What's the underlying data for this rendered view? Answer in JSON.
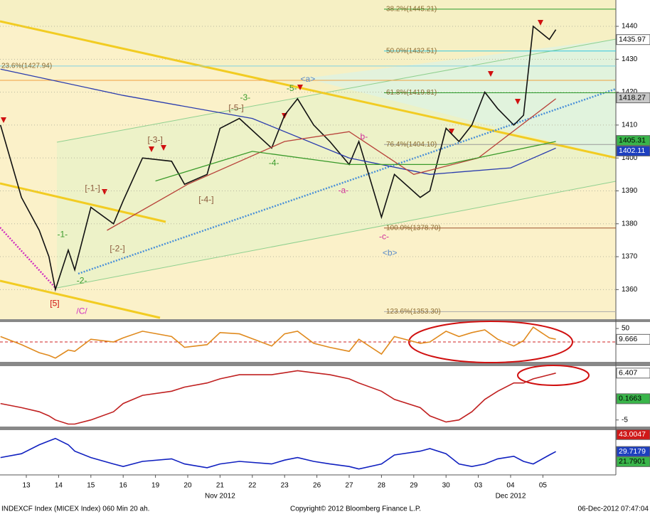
{
  "chart_data": [
    {
      "type": "line",
      "xlim": [
        -0.815,
        18.26
      ],
      "ylim": [
        1351,
        1448
      ],
      "yticks": [
        1360,
        1370,
        1380,
        1390,
        1400,
        1410,
        1420,
        1430,
        1440
      ],
      "grid": true,
      "x": [
        -0.8,
        -0.15,
        0.4,
        0.7,
        0.9,
        1.3,
        1.5,
        2.0,
        2.7,
        3.0,
        3.6,
        4.5,
        4.9,
        5.6,
        6.0,
        6.6,
        7.6,
        8.0,
        8.4,
        8.9,
        9.4,
        10.0,
        10.3,
        11.0,
        11.4,
        12.2,
        12.5,
        13.0,
        13.4,
        13.8,
        14.2,
        14.6,
        15.1,
        15.4,
        15.7,
        16.2,
        16.4
      ],
      "series": [
        {
          "color": "#111111",
          "values": [
            1410,
            1388,
            1378,
            1370,
            1360,
            1372,
            1366,
            1385,
            1380,
            1387,
            1400,
            1399,
            1392,
            1395,
            1409,
            1412,
            1403,
            1413,
            1418,
            1410,
            1405,
            1398,
            1405,
            1382,
            1395,
            1388,
            1390,
            1409,
            1405,
            1410,
            1420,
            1415,
            1410,
            1413,
            1440,
            1436,
            1439
          ]
        },
        {
          "color": "#2a3cae",
          "x": [
            -0.8,
            3,
            7,
            10,
            12.5,
            15,
            16.4
          ],
          "values": [
            1427,
            1419,
            1412,
            1400,
            1395,
            1397,
            1403
          ]
        },
        {
          "color": "#b8423a",
          "x": [
            2.5,
            5,
            8,
            10,
            12,
            14,
            16.4
          ],
          "values": [
            1378,
            1392,
            1405,
            1408,
            1395,
            1400,
            1418
          ]
        },
        {
          "color": "#3a9a2a",
          "x": [
            4,
            7,
            10,
            13,
            16.4
          ],
          "values": [
            1393,
            1402,
            1398,
            1398,
            1405
          ]
        }
      ],
      "levels": [
        {
          "label": "23.6%(1427.94)",
          "value": 1427.94,
          "color": "#7fd0e0"
        },
        {
          "label": "38.2%(1445.21)",
          "value": 1445.21,
          "color": "#2a9a2a"
        },
        {
          "label": "50.0%(1432.51)",
          "value": 1432.51,
          "color": "#33c7e0"
        },
        {
          "label": "61.8%(1419.81)",
          "value": 1419.81,
          "color": "#2a9a2a"
        },
        {
          "label": "76.4%(1404.10)",
          "value": 1404.1,
          "color": "#999999"
        },
        {
          "label": "100.0%(1378.70)",
          "value": 1378.7,
          "color": "#a0522d"
        },
        {
          "label": "123.6%(1353.30)",
          "value": 1353.3,
          "color": "#aaaaaa"
        }
      ],
      "price_tags": [
        {
          "value": 1435.97,
          "color": "#ffffff",
          "text_color": "#000000"
        },
        {
          "value": 1418.27,
          "color": "#c8c8c8",
          "text_color": "#000000"
        },
        {
          "value": 1405.31,
          "color": "#39b54a",
          "text_color": "#000000"
        },
        {
          "value": 1402.11,
          "color": "#1d3fbf",
          "text_color": "#ffffff"
        }
      ],
      "annotations": [
        {
          "text": "-1-",
          "x": 1.12,
          "y": 1376.6,
          "color": "#3a9a2a"
        },
        {
          "text": "-2-",
          "x": 1.72,
          "y": 1362.6,
          "color": "#3a9a2a"
        },
        {
          "text": "[-1-]",
          "x": 2.05,
          "y": 1390.7,
          "color": "#8b5a3c"
        },
        {
          "text": "[-2-]",
          "x": 2.82,
          "y": 1372.3,
          "color": "#8b5a3c"
        },
        {
          "text": "[-3-]",
          "x": 3.99,
          "y": 1405.4,
          "color": "#8b5a3c"
        },
        {
          "text": "[-4-]",
          "x": 5.57,
          "y": 1387.2,
          "color": "#8b5a3c"
        },
        {
          "text": "[-5-]",
          "x": 6.5,
          "y": 1415.1,
          "color": "#8b5a3c"
        },
        {
          "text": "-3-",
          "x": 6.78,
          "y": 1418.2,
          "color": "#3a9a2a"
        },
        {
          "text": "-4-",
          "x": 7.67,
          "y": 1398.3,
          "color": "#3a9a2a"
        },
        {
          "text": "-5-",
          "x": 8.22,
          "y": 1421,
          "color": "#3a9a2a"
        },
        {
          "text": "<a>",
          "x": 8.72,
          "y": 1423.8,
          "color": "#5a8ac8"
        },
        {
          "text": "-a-",
          "x": 9.82,
          "y": 1390,
          "color": "#d0309a"
        },
        {
          "text": "b-",
          "x": 10.46,
          "y": 1406.3,
          "color": "#d0309a"
        },
        {
          "text": "-c-",
          "x": 11.08,
          "y": 1376,
          "color": "#d0309a"
        },
        {
          "text": "<b>",
          "x": 11.26,
          "y": 1371,
          "color": "#5a8ac8"
        },
        {
          "text": "[5]",
          "x": 0.88,
          "y": 1355.7,
          "color": "#d01010"
        },
        {
          "text": "/C/",
          "x": 1.72,
          "y": 1353.3,
          "color": "#d030c0"
        }
      ]
    },
    {
      "type": "line",
      "xlim": [
        -0.815,
        18.26
      ],
      "ylim": [
        -74,
        74
      ],
      "yticks": [
        50
      ],
      "grid": false,
      "x": [
        -0.8,
        -0.15,
        0.4,
        0.7,
        0.9,
        1.3,
        1.5,
        2.0,
        2.7,
        3.0,
        3.6,
        4.5,
        4.9,
        5.6,
        6.0,
        6.6,
        7.6,
        8.0,
        8.4,
        8.9,
        9.4,
        10.0,
        10.3,
        11.0,
        11.4,
        12.2,
        12.5,
        13.0,
        13.4,
        13.8,
        14.2,
        14.6,
        15.1,
        15.4,
        15.7,
        16.2,
        16.4
      ],
      "series": [
        {
          "color": "#e08a1e",
          "values": [
            20,
            -10,
            -40,
            -50,
            -60,
            -30,
            -35,
            10,
            0,
            15,
            40,
            20,
            -20,
            -10,
            35,
            30,
            -15,
            30,
            40,
            -5,
            -20,
            -35,
            10,
            -45,
            20,
            -5,
            0,
            40,
            20,
            35,
            45,
            10,
            -15,
            5,
            55,
            15,
            10
          ]
        }
      ],
      "price_tags": [
        {
          "value": 9.666,
          "color": "#ffffff",
          "text_color": "#000000"
        }
      ]
    },
    {
      "type": "line",
      "xlim": [
        -0.815,
        18.26
      ],
      "ylim": [
        -6.6,
        8.1
      ],
      "yticks": [
        -5
      ],
      "grid": false,
      "x": [
        -0.8,
        -0.15,
        0.4,
        0.7,
        0.9,
        1.3,
        1.5,
        2.0,
        2.7,
        3.0,
        3.6,
        4.5,
        4.9,
        5.6,
        6.0,
        6.6,
        7.6,
        8.0,
        8.4,
        8.9,
        9.4,
        10.0,
        10.3,
        11.0,
        11.4,
        12.2,
        12.5,
        13.0,
        13.4,
        13.8,
        14.2,
        14.6,
        15.1,
        15.4,
        15.7,
        16.2,
        16.4
      ],
      "series": [
        {
          "color": "#c02020",
          "values": [
            -1,
            -2,
            -3,
            -4,
            -5,
            -6,
            -6,
            -5,
            -3,
            -1,
            1,
            2,
            3,
            4,
            5,
            6,
            6,
            6.5,
            7,
            6.5,
            6,
            5,
            4,
            2,
            0,
            -2,
            -4,
            -5.5,
            -5,
            -3,
            0,
            2,
            4,
            4,
            5,
            6,
            6.4
          ]
        }
      ],
      "price_tags": [
        {
          "value": 6.407,
          "color": "#ffffff",
          "text_color": "#000000"
        },
        {
          "value": 0.1663,
          "color": "#39b54a",
          "text_color": "#000000"
        }
      ]
    },
    {
      "type": "line",
      "xlim": [
        -0.815,
        18.26
      ],
      "ylim": [
        11.4,
        46.5
      ],
      "yticks": [],
      "grid": false,
      "x": [
        -0.8,
        -0.15,
        0.4,
        0.7,
        0.9,
        1.3,
        1.5,
        2.0,
        2.7,
        3.0,
        3.6,
        4.5,
        4.9,
        5.6,
        6.0,
        6.6,
        7.6,
        8.0,
        8.4,
        8.9,
        9.4,
        10.0,
        10.3,
        11.0,
        11.4,
        12.2,
        12.5,
        13.0,
        13.4,
        13.8,
        14.2,
        14.6,
        15.1,
        15.4,
        15.7,
        16.2,
        16.4
      ],
      "series": [
        {
          "color": "#1020c0",
          "values": [
            25,
            28,
            35,
            38,
            40,
            35,
            30,
            25,
            20,
            18,
            22,
            24,
            20,
            17,
            20,
            22,
            20,
            23,
            25,
            22,
            20,
            18,
            16,
            20,
            27,
            30,
            32,
            28,
            20,
            18,
            20,
            24,
            26,
            22,
            20,
            27,
            29.7
          ]
        }
      ],
      "price_tags": [
        {
          "value": 43.0047,
          "color": "#d01818",
          "text_color": "#ffffff"
        },
        {
          "value": 29.7179,
          "color": "#1d3fbf",
          "text_color": "#ffffff"
        },
        {
          "value": 21.7901,
          "color": "#39b54a",
          "text_color": "#000000"
        }
      ],
      "xticks": [
        {
          "value": 0,
          "label": "13"
        },
        {
          "value": 1,
          "label": "14"
        },
        {
          "value": 2,
          "label": "15"
        },
        {
          "value": 3,
          "label": "16"
        },
        {
          "value": 4,
          "label": "19"
        },
        {
          "value": 5,
          "label": "20"
        },
        {
          "value": 6,
          "label": "21"
        },
        {
          "value": 7,
          "label": "22"
        },
        {
          "value": 8,
          "label": "23"
        },
        {
          "value": 9,
          "label": "26"
        },
        {
          "value": 10,
          "label": "27"
        },
        {
          "value": 11,
          "label": "28"
        },
        {
          "value": 12,
          "label": "29"
        },
        {
          "value": 13,
          "label": "30"
        },
        {
          "value": 14,
          "label": "03"
        },
        {
          "value": 15,
          "label": "04"
        },
        {
          "value": 16,
          "label": "05"
        }
      ],
      "x_group_labels": [
        {
          "value": 6,
          "label": "Nov 2012"
        },
        {
          "value": 15,
          "label": "Dec 2012"
        }
      ]
    }
  ],
  "footer": {
    "left": "INDEXCF Index (MICEX Index) 060 Min 20 ah.",
    "center": "Copyright© 2012 Bloomberg Finance L.P.",
    "right": "06-Dec-2012 07:47:04"
  }
}
